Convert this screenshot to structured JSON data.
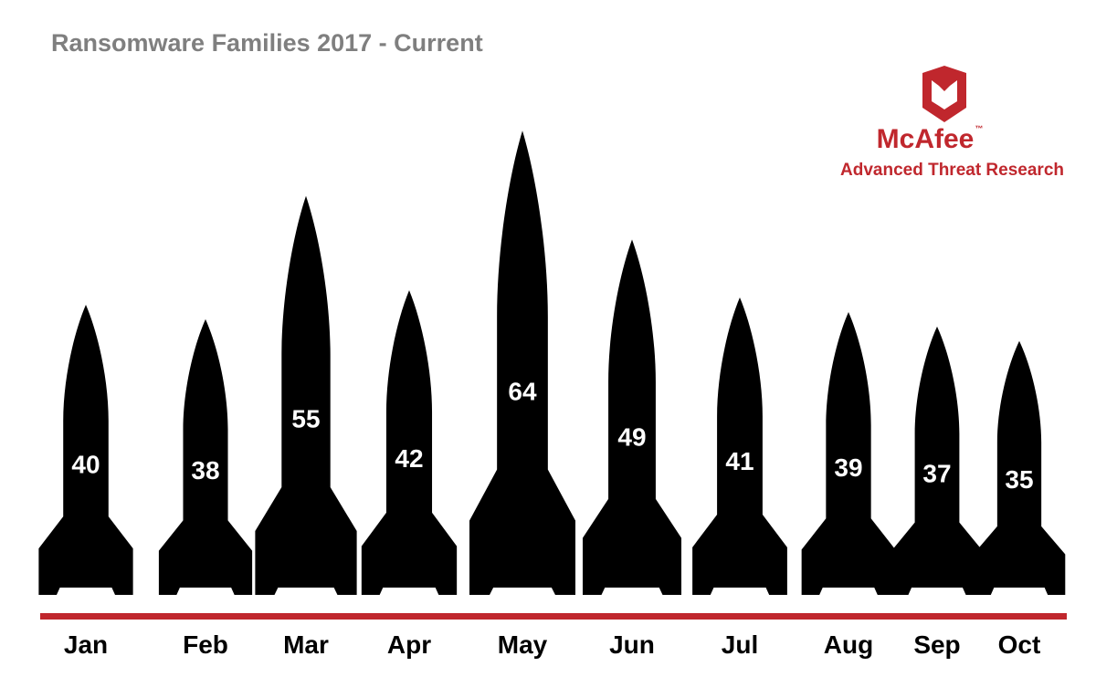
{
  "header": {
    "title": "Ransomware Families 2017 - Current"
  },
  "brand": {
    "name": "McAfee",
    "trademark": "™",
    "subtitle": "Advanced Threat Research",
    "color": "#c0272d",
    "icon": "mcafee-shield-icon"
  },
  "chart_data": {
    "type": "bar",
    "title": "Ransomware Families 2017 - Current",
    "mark_shape": "rocket",
    "categories": [
      "Jan",
      "Feb",
      "Mar",
      "Apr",
      "May",
      "Jun",
      "Jul",
      "Aug",
      "Sep",
      "Oct"
    ],
    "values": [
      40,
      38,
      55,
      42,
      64,
      49,
      41,
      39,
      37,
      35
    ],
    "data_labels": true,
    "xlabel": "",
    "ylabel": "",
    "grid": false,
    "legend": "none",
    "colors": {
      "mark": "#000000",
      "value_text": "#ffffff",
      "baseline": "#c0272d",
      "title": "#7f7f7f"
    }
  }
}
